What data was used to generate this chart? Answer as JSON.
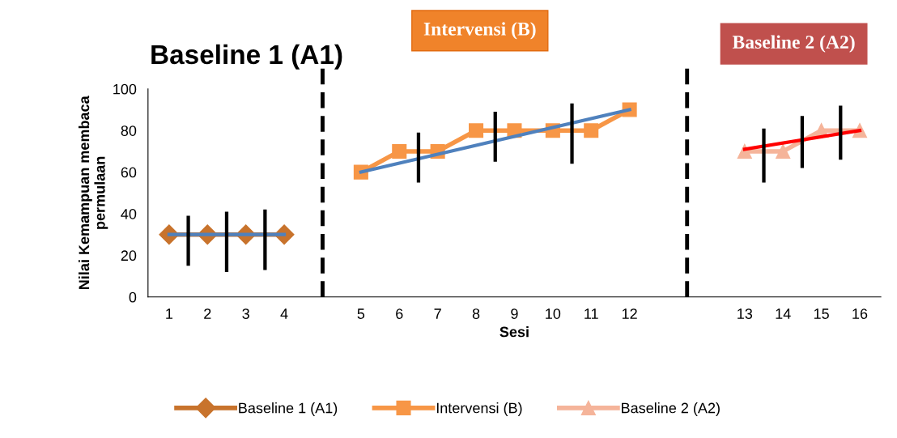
{
  "chart_data": {
    "type": "line",
    "title": "Baseline 1 (A1)",
    "xlabel": "Sesi",
    "ylabel": "Nilai Kemampuan membaca\npermulaan",
    "annotations": [
      "Intervensi (B)",
      "Baseline 2 (A2)"
    ],
    "categories": [
      "1",
      null,
      "2",
      null,
      "3",
      null,
      "4",
      null,
      null,
      null,
      "5",
      null,
      "6",
      null,
      "7",
      null,
      "8",
      null,
      "9",
      null,
      "10",
      null,
      "11",
      null,
      "12",
      null,
      null,
      null,
      null,
      null,
      "13",
      null,
      "14",
      null,
      "15",
      null,
      "16"
    ],
    "ylim": [
      0,
      100
    ],
    "yticks": [
      0,
      20,
      40,
      60,
      80,
      100
    ],
    "grid": false,
    "legend": "bottom",
    "series": [
      {
        "name": "Baseline 1 (A1)",
        "color": "#c8732c",
        "marker": "diamond",
        "values": [
          30,
          null,
          30,
          null,
          30,
          null,
          30,
          null,
          null,
          null,
          null,
          null,
          null,
          null,
          null,
          null,
          null,
          null,
          null,
          null,
          null,
          null,
          null,
          null,
          null,
          null,
          null,
          null,
          null,
          null,
          null,
          null,
          null,
          null,
          null,
          null,
          null
        ]
      },
      {
        "name": "Intervensi (B)",
        "color": "#f79646",
        "marker": "square",
        "values": [
          null,
          null,
          null,
          null,
          null,
          null,
          null,
          null,
          null,
          null,
          60,
          null,
          70,
          null,
          70,
          null,
          80,
          null,
          80,
          null,
          80,
          null,
          80,
          null,
          90,
          null,
          null,
          null,
          null,
          null,
          null,
          null,
          null,
          null,
          null,
          null,
          null
        ]
      },
      {
        "name": "Baseline 2 (A2)",
        "color": "#f5b49a",
        "marker": "triangle",
        "values": [
          null,
          null,
          null,
          null,
          null,
          null,
          null,
          null,
          null,
          null,
          null,
          null,
          null,
          null,
          null,
          null,
          null,
          null,
          null,
          null,
          null,
          null,
          null,
          null,
          null,
          null,
          null,
          null,
          null,
          null,
          70,
          null,
          70,
          null,
          80,
          null,
          80
        ]
      },
      {
        "color": "#4f81bd",
        "marker": "none",
        "values": [
          30,
          null,
          null,
          null,
          null,
          null,
          30,
          null,
          null,
          null,
          null,
          null,
          null,
          null,
          null,
          null,
          null,
          null,
          null,
          null,
          null,
          null,
          null,
          null,
          null,
          null,
          null,
          null,
          null,
          null,
          null,
          null,
          null,
          null,
          null,
          null,
          null
        ]
      },
      {
        "color": "#4f81bd",
        "marker": "none",
        "values": [
          null,
          null,
          null,
          null,
          null,
          null,
          null,
          null,
          null,
          null,
          60,
          null,
          null,
          null,
          null,
          null,
          null,
          null,
          null,
          null,
          null,
          null,
          null,
          null,
          90,
          null,
          null,
          null,
          null,
          null,
          null,
          null,
          null,
          null,
          null,
          null,
          null
        ]
      },
      {
        "color": "#ff0000",
        "marker": "none",
        "values": [
          null,
          null,
          null,
          null,
          null,
          null,
          null,
          null,
          null,
          null,
          null,
          null,
          null,
          null,
          null,
          null,
          null,
          null,
          null,
          null,
          null,
          null,
          null,
          null,
          null,
          null,
          null,
          null,
          null,
          null,
          71,
          null,
          null,
          null,
          null,
          null,
          80
        ]
      },
      {
        "type": "bar",
        "color": "#000000",
        "values": [
          null,
          24,
          null,
          29,
          null,
          29,
          null,
          null,
          null,
          null,
          null,
          null,
          null,
          24,
          null,
          null,
          null,
          24,
          null,
          null,
          null,
          29,
          null,
          null,
          null,
          null,
          null,
          null,
          null,
          null,
          null,
          26,
          null,
          25,
          null,
          26,
          null
        ],
        "base": [
          null,
          15,
          null,
          12,
          null,
          13,
          null,
          null,
          null,
          null,
          null,
          null,
          null,
          55,
          null,
          null,
          null,
          65,
          null,
          null,
          null,
          64,
          null,
          null,
          null,
          null,
          null,
          null,
          null,
          null,
          null,
          55,
          null,
          62,
          null,
          66,
          null
        ]
      }
    ]
  }
}
